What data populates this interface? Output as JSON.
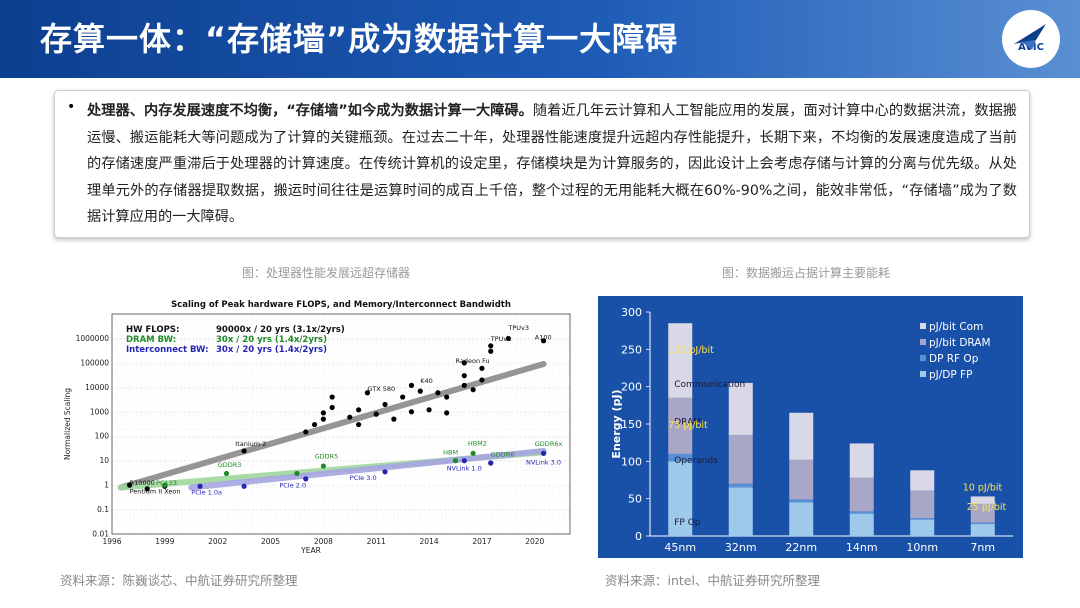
{
  "header": {
    "title": "存算一体：“存储墙”成为数据计算一大障碍",
    "logo_text": "AVIC"
  },
  "textbox": {
    "bullet": "•",
    "bold": "处理器、内存发展速度不均衡，“存储墙”如今成为数据计算一大障碍。",
    "body": "随着近几年云计算和人工智能应用的发展，面对计算中心的数据洪流，数据搬运慢、搬运能耗大等问题成为了计算的关键瓶颈。在过去二十年，处理器性能速度提升远超内存性能提升，长期下来，不均衡的发展速度造成了当前的存储速度严重滞后于处理器的计算速度。在传统计算机的设定里，存储模块是为计算服务的，因此设计上会考虑存储与计算的分离与优先级。从处理单元外的存储器提取数据，搬运时间往往是运算时间的成百上千倍，整个过程的无用能耗大概在60%-90%之间，能效非常低，“存储墙”成为了数据计算应用的一大障碍。"
  },
  "captions": {
    "left": "图：处理器性能发展远超存储器",
    "right": "图：数据搬运占据计算主要能耗"
  },
  "sources": {
    "left": "资料来源：陈巍谈芯、中航证券研究所整理",
    "right": "资料来源：intel、中航证券研究所整理"
  },
  "chart_data": [
    {
      "type": "scatter",
      "title": "Scaling of Peak hardware FLOPS, and Memory/Interconnect Bandwidth",
      "xlabel": "YEAR",
      "ylabel": "Normalized Scaling",
      "log_y": true,
      "xlim": [
        1996,
        2022
      ],
      "ylim": [
        0.01,
        10000000
      ],
      "xticks": [
        "1996",
        "1999",
        "2002",
        "2005",
        "2008",
        "2011",
        "2014",
        "2017",
        "2020"
      ],
      "yticks": [
        "0.01",
        "0.1",
        "1",
        "10",
        "100",
        "1000",
        "10000",
        "100000",
        "1000000"
      ],
      "legend": [
        {
          "name": "HW FLOPS:",
          "value": "90000x / 20 yrs (3.1x/2yrs)",
          "color": "#111111"
        },
        {
          "name": "DRAM BW:",
          "value": "30x / 20 yrs (1.4x/2yrs)",
          "color": "#1f8a24"
        },
        {
          "name": "Interconnect BW:",
          "value": "30x / 20 yrs (1.4x/2yrs)",
          "color": "#2525b5"
        }
      ],
      "series": [
        {
          "name": "HW FLOPS",
          "color": "#000000",
          "trend": {
            "x": [
              1996.5,
              2020.5
            ],
            "y": [
              0.8,
              90000
            ]
          },
          "points": [
            [
              1997,
              1
            ],
            [
              1998,
              0.7
            ],
            [
              1999,
              0.9
            ],
            [
              2003.5,
              25
            ],
            [
              2007,
              150
            ],
            [
              2007.5,
              300
            ],
            [
              2008,
              500
            ],
            [
              2008,
              900
            ],
            [
              2008.5,
              1500
            ],
            [
              2008.5,
              4000
            ],
            [
              2009.5,
              600
            ],
            [
              2010,
              300
            ],
            [
              2010,
              1200
            ],
            [
              2010.5,
              6000
            ],
            [
              2011,
              800
            ],
            [
              2011.5,
              2000
            ],
            [
              2012,
              500
            ],
            [
              2012.5,
              4000
            ],
            [
              2013,
              1000
            ],
            [
              2013,
              12000
            ],
            [
              2013.5,
              7000
            ],
            [
              2014,
              1200
            ],
            [
              2014.5,
              6000
            ],
            [
              2015,
              900
            ],
            [
              2015,
              4000
            ],
            [
              2016,
              12000
            ],
            [
              2016,
              30000
            ],
            [
              2016,
              100000
            ],
            [
              2016.5,
              8000
            ],
            [
              2017,
              20000
            ],
            [
              2017,
              60000
            ],
            [
              2017.5,
              300000
            ],
            [
              2017.5,
              500000
            ],
            [
              2018.5,
              1000000
            ],
            [
              2020.5,
              800000
            ]
          ],
          "labels": [
            {
              "text": "R10000",
              "x": 1997,
              "y": 1
            },
            {
              "text": "Pentium II Xeon",
              "x": 1997,
              "y": 0.45
            },
            {
              "text": "Itanium 2",
              "x": 2003,
              "y": 40
            },
            {
              "text": "GTX 580",
              "x": 2010.5,
              "y": 7000
            },
            {
              "text": "K40",
              "x": 2013.5,
              "y": 15000
            },
            {
              "text": "Radeon Fu",
              "x": 2015.5,
              "y": 100000
            },
            {
              "text": "TPUv2",
              "x": 2017.5,
              "y": 800000
            },
            {
              "text": "TPUv3",
              "x": 2018.5,
              "y": 2200000
            },
            {
              "text": "A100",
              "x": 2020,
              "y": 900000
            }
          ]
        },
        {
          "name": "DRAM BW",
          "color": "#1f8a24",
          "trend": {
            "x": [
              1996.5,
              2020.5
            ],
            "y": [
              0.8,
              22
            ]
          },
          "points": [
            [
              1999,
              1
            ],
            [
              2002.5,
              3
            ],
            [
              2006.5,
              3
            ],
            [
              2008,
              6
            ],
            [
              2015.5,
              10
            ],
            [
              2016.5,
              20
            ],
            [
              2017.5,
              8
            ],
            [
              2020.5,
              20
            ]
          ],
          "labels": [
            {
              "text": "PC133",
              "x": 1998.5,
              "y": 1
            },
            {
              "text": "GDDR3",
              "x": 2002,
              "y": 5.5
            },
            {
              "text": "GDDR5",
              "x": 2007.5,
              "y": 12
            },
            {
              "text": "HBM",
              "x": 2014.8,
              "y": 18
            },
            {
              "text": "HBM2",
              "x": 2016.2,
              "y": 42
            },
            {
              "text": "GDDR6",
              "x": 2017.5,
              "y": 15
            },
            {
              "text": "GDDR6x",
              "x": 2020,
              "y": 40
            }
          ]
        },
        {
          "name": "Interconnect BW",
          "color": "#2525b5",
          "trend": {
            "x": [
              2000.5,
              2020.5
            ],
            "y": [
              0.8,
              25
            ]
          },
          "points": [
            [
              2001,
              0.9
            ],
            [
              2003.5,
              0.9
            ],
            [
              2007,
              1.8
            ],
            [
              2011.5,
              3.5
            ],
            [
              2016,
              10
            ],
            [
              2017.5,
              8
            ],
            [
              2020.5,
              20
            ]
          ],
          "labels": [
            {
              "text": "PCIe 1.0a",
              "x": 2000.5,
              "y": 0.42
            },
            {
              "text": "PCIe 2.0",
              "x": 2005.5,
              "y": 0.8
            },
            {
              "text": "PCIe 3.0",
              "x": 2009.5,
              "y": 1.6
            },
            {
              "text": "NVLink 1.0",
              "x": 2015,
              "y": 4
            },
            {
              "text": "NVLink 3.0",
              "x": 2019.5,
              "y": 7
            }
          ]
        }
      ]
    },
    {
      "type": "bar",
      "stacked": true,
      "ylabel": "Energy (pJ)",
      "ylim": [
        0,
        300
      ],
      "yticks": [
        0,
        50,
        100,
        150,
        200,
        250,
        300
      ],
      "categories": [
        "45nm",
        "32nm",
        "22nm",
        "14nm",
        "10nm",
        "7nm"
      ],
      "series": [
        {
          "name": "pJ/DP FP",
          "color": "#9ec9ea",
          "values": [
            100,
            65,
            45,
            30,
            22,
            16
          ]
        },
        {
          "name": "DP RF Op",
          "color": "#5a8fd6",
          "values": [
            10,
            5,
            4,
            3,
            2,
            2
          ]
        },
        {
          "name": "pJ/bit DRAM",
          "color": "#a8a7c8",
          "values": [
            75,
            65,
            53,
            45,
            37,
            25
          ]
        },
        {
          "name": "pJ/bit Com",
          "color": "#d9d8e6",
          "values": [
            100,
            70,
            63,
            46,
            27,
            10
          ]
        }
      ],
      "bar_annotations": [
        {
          "text": "100 pJ/bit",
          "color": "#ffe14d"
        },
        {
          "text": "75 pJ/bit",
          "color": "#ffe14d"
        },
        {
          "text": "10 pJ/bit",
          "color": "#ffe14d"
        },
        {
          "text": "25 pJ/bit",
          "color": "#ffe14d"
        }
      ],
      "segment_labels": [
        "Communication",
        "DRAM",
        "Operands",
        "FP Op"
      ]
    }
  ]
}
